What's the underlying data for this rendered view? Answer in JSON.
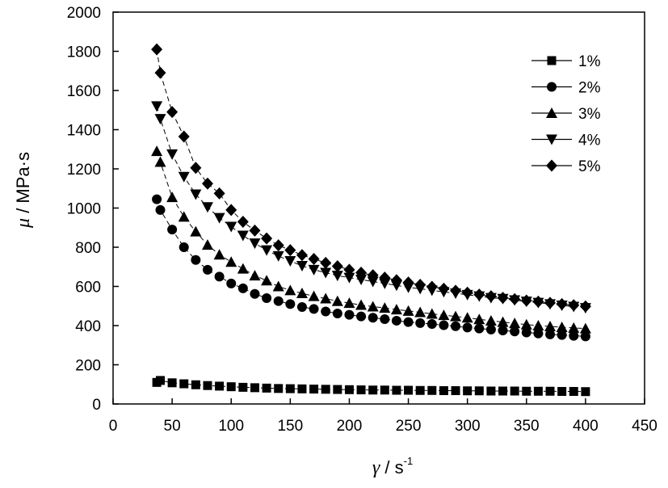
{
  "chart_data": {
    "type": "line",
    "xlabel": {
      "symbol": "γ",
      "unit": " / s",
      "exponent": "-1"
    },
    "ylabel": {
      "symbol": "μ",
      "unit": " / MPa·s"
    },
    "xlim": [
      0,
      450
    ],
    "ylim": [
      0,
      2000
    ],
    "xticks": [
      "0",
      "50",
      "100",
      "150",
      "200",
      "250",
      "300",
      "350",
      "400",
      "450"
    ],
    "yticks": [
      "0",
      "200",
      "400",
      "600",
      "800",
      "1000",
      "1200",
      "1400",
      "1600",
      "1800",
      "2000"
    ],
    "grid": false,
    "legend_position": "top-right",
    "x": [
      37,
      40,
      50,
      60,
      70,
      80,
      90,
      100,
      110,
      120,
      130,
      140,
      150,
      160,
      170,
      180,
      190,
      200,
      210,
      220,
      230,
      240,
      250,
      260,
      270,
      280,
      290,
      300,
      310,
      320,
      330,
      340,
      350,
      360,
      370,
      380,
      390,
      400
    ],
    "series": [
      {
        "name": "1%",
        "marker": "square",
        "values": [
          110,
          120,
          108,
          103,
          98,
          94,
          91,
          88,
          85,
          83,
          81,
          79,
          78,
          77,
          76,
          75,
          74,
          73,
          72,
          71,
          71,
          70,
          70,
          69,
          69,
          68,
          68,
          67,
          67,
          66,
          66,
          66,
          65,
          65,
          65,
          64,
          64,
          63
        ]
      },
      {
        "name": "2%",
        "marker": "circle",
        "values": [
          1045,
          990,
          890,
          800,
          735,
          685,
          650,
          615,
          590,
          562,
          540,
          525,
          510,
          495,
          485,
          472,
          462,
          455,
          447,
          440,
          433,
          425,
          418,
          413,
          408,
          402,
          397,
          390,
          385,
          380,
          375,
          370,
          365,
          360,
          355,
          352,
          348,
          345
        ]
      },
      {
        "name": "3%",
        "marker": "triangle-up",
        "values": [
          1290,
          1235,
          1055,
          955,
          880,
          812,
          762,
          725,
          690,
          655,
          630,
          600,
          580,
          565,
          550,
          538,
          525,
          515,
          505,
          497,
          490,
          482,
          475,
          468,
          460,
          453,
          447,
          440,
          432,
          425,
          418,
          412,
          405,
          400,
          396,
          392,
          388,
          385
        ]
      },
      {
        "name": "4%",
        "marker": "triangle-down",
        "values": [
          1520,
          1455,
          1275,
          1160,
          1070,
          1005,
          950,
          905,
          860,
          820,
          785,
          755,
          730,
          705,
          685,
          670,
          655,
          645,
          635,
          625,
          615,
          605,
          595,
          588,
          580,
          572,
          565,
          557,
          550,
          542,
          537,
          530,
          523,
          517,
          510,
          503,
          497,
          490
        ]
      },
      {
        "name": "5%",
        "marker": "diamond",
        "values": [
          1810,
          1690,
          1490,
          1365,
          1205,
          1125,
          1075,
          990,
          930,
          885,
          845,
          810,
          785,
          760,
          740,
          720,
          703,
          685,
          670,
          657,
          645,
          632,
          620,
          608,
          598,
          588,
          578,
          568,
          558,
          550,
          542,
          535,
          528,
          522,
          516,
          510,
          504,
          498
        ]
      }
    ]
  }
}
